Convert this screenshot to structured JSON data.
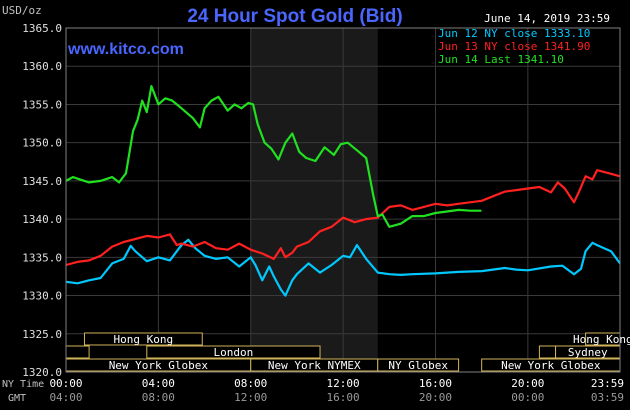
{
  "header": {
    "unit": "USD/oz",
    "title": "24 Hour Spot Gold (Bid)",
    "date": "June 14, 2019 23:59",
    "website": "www.kitco.com"
  },
  "legend": [
    {
      "label": "Jun 12 NY close 1333.10",
      "color": "#00c8ff"
    },
    {
      "label": "Jun 13 NY close 1341.90",
      "color": "#ff2020"
    },
    {
      "label": "Jun 14 Last 1341.10",
      "color": "#20e020"
    }
  ],
  "axes": {
    "ny_time_label": "NY Time",
    "gmt_label": "GMT",
    "ny_ticks": [
      "00:00",
      "04:00",
      "08:00",
      "12:00",
      "16:00",
      "20:00",
      "23:59"
    ],
    "gmt_ticks": [
      "04:00",
      "08:00",
      "12:00",
      "16:00",
      "20:00",
      "00:00",
      "03:59"
    ],
    "y_ticks": [
      "1365.0",
      "1360.0",
      "1355.0",
      "1350.0",
      "1345.0",
      "1340.0",
      "1335.0",
      "1330.0",
      "1325.0",
      "1320.0"
    ]
  },
  "sessions": [
    {
      "label": "Hong Kong",
      "start": 0.8,
      "end": 5.9,
      "row": 0
    },
    {
      "label": "Hong Kong",
      "start": 22.5,
      "end": 23.99,
      "row": 0
    },
    {
      "label": "London",
      "start": 3.5,
      "end": 11.0,
      "row": 1
    },
    {
      "label": "",
      "start": 0,
      "end": 1.0,
      "row": 1
    },
    {
      "label": "",
      "start": 20.5,
      "end": 21.2,
      "row": 1
    },
    {
      "label": "Sydney",
      "start": 21.2,
      "end": 23.99,
      "row": 1
    },
    {
      "label": "New York Globex",
      "start": 0,
      "end": 8.0,
      "row": 2
    },
    {
      "label": "New York NYMEX",
      "start": 8.0,
      "end": 13.5,
      "row": 2
    },
    {
      "label": "NY Globex",
      "start": 13.5,
      "end": 17.0,
      "row": 2
    },
    {
      "label": "New York Globex",
      "start": 18.0,
      "end": 23.99,
      "row": 2
    }
  ],
  "chart_data": {
    "type": "line",
    "title": "24 Hour Spot Gold (Bid)",
    "ylabel": "USD/oz",
    "xlabel": "",
    "xlim": [
      0,
      23.99
    ],
    "ylim": [
      1320,
      1365
    ],
    "highlight_range": [
      8.0,
      13.5
    ],
    "grid": true,
    "series": [
      {
        "name": "Jun 12 NY close 1333.10",
        "color": "#00c8ff",
        "x": [
          0,
          0.5,
          1.0,
          1.5,
          2.0,
          2.5,
          2.8,
          3.0,
          3.5,
          4.0,
          4.5,
          5.0,
          5.3,
          5.6,
          6.0,
          6.5,
          7.0,
          7.5,
          8.0,
          8.2,
          8.5,
          8.8,
          9.0,
          9.3,
          9.5,
          9.8,
          10.0,
          10.5,
          11.0,
          11.5,
          12.0,
          12.3,
          12.6,
          13.0,
          13.5,
          14.0,
          14.5,
          15.0,
          16.0,
          17.0,
          18.0,
          19.0,
          19.5,
          20.0,
          21.0,
          21.5,
          22.0,
          22.3,
          22.5,
          22.8,
          23.0,
          23.3,
          23.6,
          23.99
        ],
        "y": [
          1331.8,
          1331.6,
          1332.0,
          1332.3,
          1334.2,
          1334.8,
          1336.5,
          1335.8,
          1334.5,
          1335.0,
          1334.6,
          1336.6,
          1337.3,
          1336.2,
          1335.2,
          1334.8,
          1335.0,
          1333.8,
          1335.0,
          1334.0,
          1332.0,
          1333.8,
          1332.5,
          1330.8,
          1330.0,
          1332.0,
          1332.8,
          1334.2,
          1333.0,
          1334.0,
          1335.2,
          1335.0,
          1336.6,
          1334.8,
          1333.0,
          1332.8,
          1332.7,
          1332.8,
          1332.9,
          1333.1,
          1333.2,
          1333.6,
          1333.4,
          1333.3,
          1333.8,
          1333.9,
          1332.8,
          1333.5,
          1335.8,
          1336.9,
          1336.6,
          1336.2,
          1335.8,
          1334.2
        ]
      },
      {
        "name": "Jun 13 NY close 1341.90",
        "color": "#ff2020",
        "x": [
          0,
          0.5,
          1.0,
          1.5,
          2.0,
          2.5,
          3.0,
          3.5,
          4.0,
          4.5,
          4.8,
          5.0,
          5.5,
          6.0,
          6.5,
          7.0,
          7.5,
          8.0,
          8.5,
          9.0,
          9.3,
          9.5,
          9.8,
          10.0,
          10.5,
          11.0,
          11.5,
          12.0,
          12.5,
          13.0,
          13.5,
          14.0,
          14.5,
          15.0,
          15.5,
          16.0,
          16.5,
          17.0,
          17.5,
          18.0,
          18.5,
          19.0,
          19.5,
          20.0,
          20.5,
          21.0,
          21.3,
          21.6,
          22.0,
          22.2,
          22.5,
          22.8,
          23.0,
          23.5,
          23.99
        ],
        "y": [
          1334.0,
          1334.4,
          1334.6,
          1335.2,
          1336.4,
          1337.0,
          1337.4,
          1337.8,
          1337.6,
          1338.0,
          1336.6,
          1336.8,
          1336.4,
          1337.0,
          1336.2,
          1336.0,
          1336.8,
          1336.0,
          1335.5,
          1334.8,
          1336.2,
          1335.0,
          1335.6,
          1336.4,
          1337.0,
          1338.4,
          1339.0,
          1340.2,
          1339.6,
          1340.0,
          1340.2,
          1341.6,
          1341.8,
          1341.2,
          1341.6,
          1342.0,
          1341.8,
          1342.0,
          1342.2,
          1342.4,
          1343.0,
          1343.6,
          1343.8,
          1344.0,
          1344.2,
          1343.5,
          1344.8,
          1344.0,
          1342.2,
          1343.5,
          1345.6,
          1345.2,
          1346.4,
          1346.0,
          1345.6
        ]
      },
      {
        "name": "Jun 14 Last 1341.10",
        "color": "#20e020",
        "x": [
          0,
          0.3,
          0.6,
          1.0,
          1.5,
          2.0,
          2.3,
          2.6,
          2.9,
          3.1,
          3.3,
          3.5,
          3.7,
          4.0,
          4.3,
          4.6,
          5.0,
          5.5,
          5.8,
          6.0,
          6.3,
          6.6,
          7.0,
          7.3,
          7.6,
          7.9,
          8.1,
          8.3,
          8.6,
          8.9,
          9.2,
          9.5,
          9.8,
          10.1,
          10.4,
          10.8,
          11.2,
          11.6,
          11.9,
          12.2,
          12.6,
          13.0,
          13.3,
          13.5,
          13.7,
          14.0,
          14.5,
          15.0,
          15.5,
          16.0,
          16.5,
          17.0,
          17.5,
          17.99
        ],
        "y": [
          1345.0,
          1345.5,
          1345.2,
          1344.8,
          1345.0,
          1345.5,
          1344.8,
          1346.0,
          1351.5,
          1353.0,
          1355.5,
          1354.0,
          1357.4,
          1355.0,
          1355.8,
          1355.5,
          1354.5,
          1353.2,
          1352.0,
          1354.5,
          1355.5,
          1356.0,
          1354.2,
          1355.0,
          1354.5,
          1355.2,
          1355.0,
          1352.4,
          1350.0,
          1349.2,
          1347.8,
          1350.0,
          1351.2,
          1348.8,
          1348.0,
          1347.6,
          1349.4,
          1348.4,
          1349.8,
          1350.0,
          1349.0,
          1348.0,
          1343.2,
          1340.4,
          1340.6,
          1339.0,
          1339.4,
          1340.4,
          1340.4,
          1340.8,
          1341.0,
          1341.2,
          1341.1,
          1341.1
        ]
      }
    ]
  }
}
